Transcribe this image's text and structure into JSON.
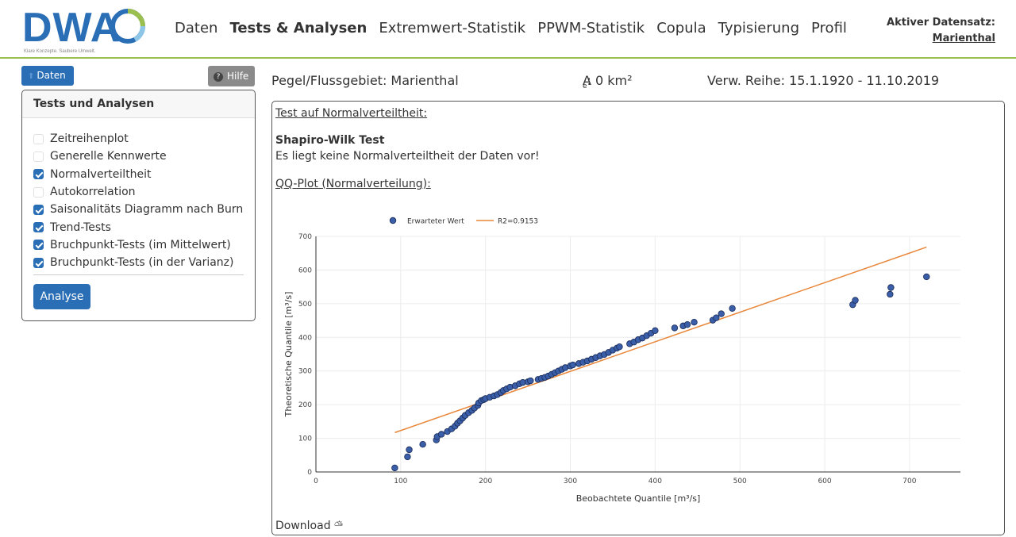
{
  "logo": {
    "text": "DWA",
    "tagline": "Klare Konzepte. Saubere Umwelt."
  },
  "nav": [
    "Daten",
    "Tests & Analysen",
    "Extremwert-Statistik",
    "PPWM-Statistik",
    "Copula",
    "Typisierung",
    "Profil"
  ],
  "nav_active": "Tests & Analysen",
  "active_dataset": {
    "label": "Aktiver Datensatz:",
    "value": "Marienthal"
  },
  "sidebar": {
    "daten_label": "Daten",
    "hilfe_label": "Hilfe",
    "panel_title": "Tests und Analysen",
    "items": [
      {
        "label": "Zeitreihenplot",
        "checked": false
      },
      {
        "label": "Generelle Kennwerte",
        "checked": false
      },
      {
        "label": "Normalverteiltheit",
        "checked": true
      },
      {
        "label": "Autokorrelation",
        "checked": false
      },
      {
        "label": "Saisonalitäts Diagramm nach Burn",
        "checked": true
      },
      {
        "label": "Trend-Tests",
        "checked": true
      },
      {
        "label": "Bruchpunkt-Tests (im Mittelwert)",
        "checked": true
      },
      {
        "label": "Bruchpunkt-Tests (in der Varianz)",
        "checked": true
      }
    ],
    "analyse_label": "Analyse"
  },
  "info": {
    "pegel": "Pegel/Flussgebiet: Marienthal",
    "area_prefix": "A",
    "area_sub": "e",
    "area_value": ": 0 km²",
    "reihe": "Verw. Reihe: 15.1.1920 - 11.10.2019"
  },
  "main": {
    "test_heading": "Test auf Normalverteiltheit:",
    "test_name": "Shapiro-Wilk Test",
    "test_result": "Es liegt keine Normalverteiltheit der Daten vor!",
    "plot_heading": "QQ-Plot (Normalverteilung):",
    "download_label": "Download"
  },
  "colors": {
    "accent": "#2a6eb5",
    "point": "#3a5ea8",
    "fit_line": "#e8873a",
    "header_rule": "#9bbf4f"
  },
  "chart_data": {
    "type": "scatter",
    "xlabel": "Beobachtete Quantile [m³/s]",
    "ylabel": "Theoretische Quantile [m³/s]",
    "xlim": [
      0,
      760
    ],
    "ylim": [
      0,
      700
    ],
    "xticks": [
      0,
      100,
      200,
      300,
      400,
      500,
      600,
      700
    ],
    "yticks": [
      0,
      100,
      200,
      300,
      400,
      500,
      600,
      700
    ],
    "grid": true,
    "legend_position": "top-center",
    "series": [
      {
        "name": "Erwarteter Wert",
        "kind": "points",
        "x": [
          93,
          108,
          110,
          126,
          142,
          143,
          148,
          155,
          160,
          164,
          167,
          170,
          173,
          176,
          180,
          184,
          187,
          191,
          192,
          195,
          198,
          200,
          205,
          210,
          214,
          218,
          221,
          225,
          229,
          235,
          240,
          244,
          250,
          253,
          262,
          266,
          270,
          274,
          278,
          282,
          286,
          290,
          294,
          300,
          303,
          310,
          315,
          320,
          325,
          330,
          335,
          340,
          345,
          350,
          355,
          358,
          370,
          375,
          380,
          385,
          390,
          395,
          400,
          423,
          433,
          438,
          446,
          468,
          472,
          478,
          491,
          633,
          636,
          677,
          678,
          720
        ],
        "y": [
          12,
          45,
          66,
          82,
          95,
          105,
          112,
          120,
          128,
          136,
          145,
          152,
          160,
          168,
          176,
          183,
          190,
          198,
          205,
          212,
          215,
          218,
          222,
          226,
          230,
          236,
          242,
          247,
          252,
          256,
          262,
          266,
          268,
          271,
          275,
          278,
          281,
          285,
          290,
          295,
          300,
          305,
          310,
          315,
          318,
          322,
          326,
          330,
          335,
          340,
          345,
          349,
          355,
          362,
          368,
          372,
          381,
          386,
          393,
          398,
          405,
          412,
          420,
          428,
          434,
          438,
          445,
          451,
          458,
          470,
          486,
          497,
          510,
          528,
          548,
          580
        ]
      },
      {
        "name": "R2=0.9153",
        "kind": "line",
        "x": [
          93,
          720
        ],
        "y": [
          117,
          668
        ]
      }
    ]
  }
}
